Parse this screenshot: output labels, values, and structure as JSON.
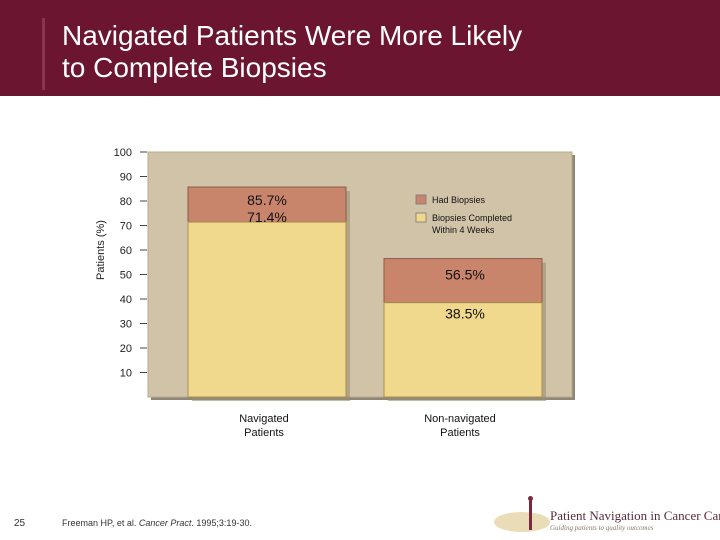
{
  "slide": {
    "title_line1": "Navigated Patients Were More Likely",
    "title_line2": "to Complete Biopsies",
    "number": "25",
    "footnote_authors": "Freeman HP, et al. ",
    "footnote_journal": "Cancer Pract",
    "footnote_rest": ". 1995;3:19-30.",
    "logo_text": "Patient Navigation in Cancer Care",
    "logo_tagline": "Guiding patients to quality outcomes"
  },
  "colors": {
    "header": "#6b1530",
    "had_biopsies": "#c9856b",
    "completed": "#f0d98c",
    "plot_bg": "#d1c3a8"
  },
  "chart_data": {
    "type": "bar",
    "categories": [
      "Navigated\nPatients",
      "Non-navigated\nPatients"
    ],
    "series": [
      {
        "name": "Had Biopsies",
        "values": [
          85.7,
          56.5
        ],
        "labels": [
          "85.7%",
          "56.5%"
        ]
      },
      {
        "name": "Biopsies Completed\nWithin 4 Weeks",
        "values": [
          71.4,
          38.5
        ],
        "labels": [
          "71.4%",
          "38.5%"
        ]
      }
    ],
    "ylabel": "Patients (%)",
    "ylim": [
      0,
      100
    ],
    "yticks": [
      10,
      20,
      30,
      40,
      50,
      60,
      70,
      80,
      90,
      100
    ],
    "legend_position": "top-right"
  }
}
